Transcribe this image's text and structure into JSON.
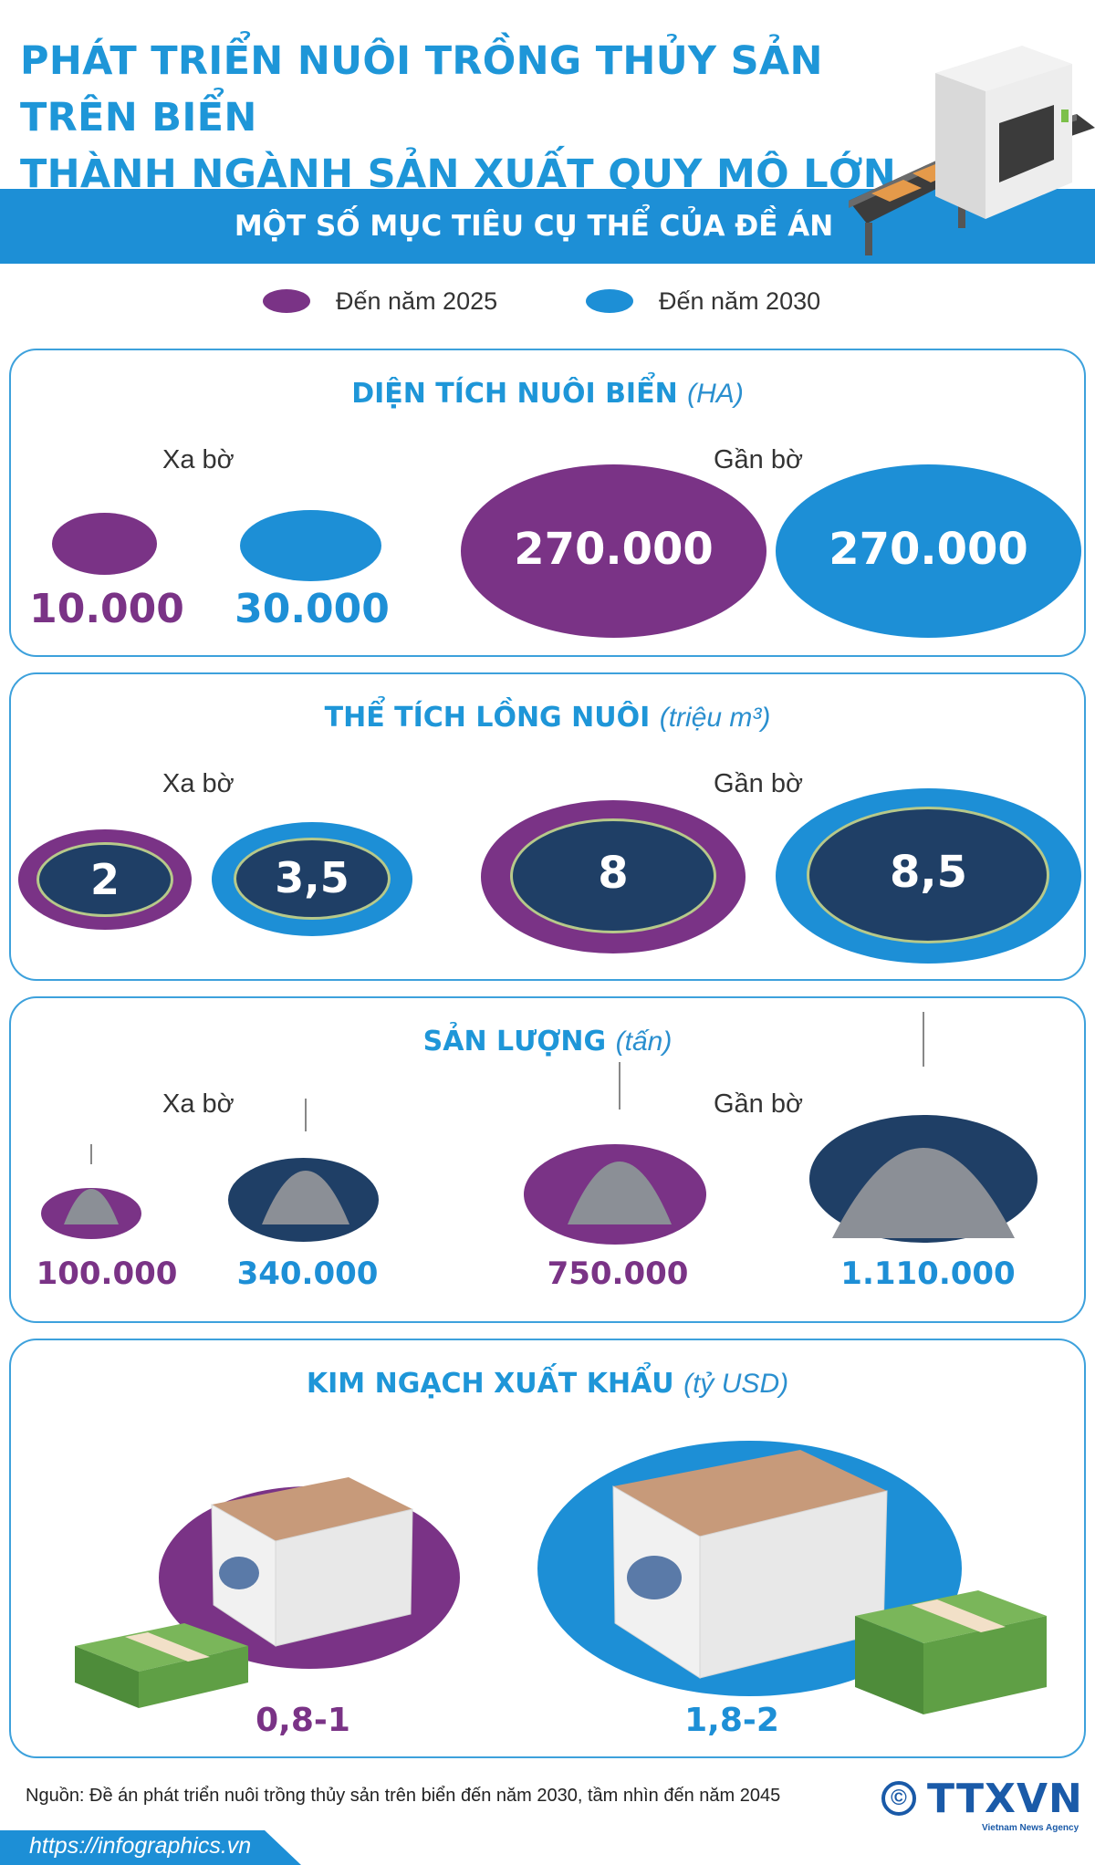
{
  "header": {
    "title_line1": "PHÁT TRIỂN NUÔI TRỒNG THỦY SẢN TRÊN BIỂN",
    "title_line2": "THÀNH NGÀNH SẢN XUẤT QUY MÔ LỚN",
    "band_label": "MỘT SỐ MỤC TIÊU CỤ THỂ CỦA ĐỀ ÁN"
  },
  "legend": {
    "item_2025": "Đến năm 2025",
    "item_2030": "Đến năm 2030"
  },
  "colors": {
    "y2025": "#7a3386",
    "y2030": "#1d8fd6",
    "accent": "#1e96d8",
    "dark_navy": "#1f3f66"
  },
  "zones": {
    "far": "Xa bờ",
    "near": "Gần bờ"
  },
  "area": {
    "title": "DIỆN TÍCH NUÔI BIỂN",
    "unit": "(HA)",
    "far_2025": "10.000",
    "far_2030": "30.000",
    "near_2025": "270.000",
    "near_2030": "270.000"
  },
  "volume": {
    "title": "THỂ TÍCH LỒNG NUÔI",
    "unit": "(triệu m³)",
    "far_2025": "2",
    "far_2030": "3,5",
    "near_2025": "8",
    "near_2030": "8,5"
  },
  "output": {
    "title": "SẢN LƯỢNG",
    "unit": "(tấn)",
    "far_2025": "100.000",
    "far_2030": "340.000",
    "near_2025": "750.000",
    "near_2030": "1.110.000"
  },
  "export": {
    "title": "KIM NGẠCH XUẤT KHẨU",
    "unit": "(tỷ USD)",
    "v_2025": "0,8-1",
    "v_2030": "1,8-2"
  },
  "footer": {
    "source": "Nguồn: Đề án phát triển nuôi trồng thủy sản trên biển đến năm 2030, tầm nhìn đến năm 2045",
    "url": "https://infographics.vn",
    "logo_text": "TTXVN",
    "logo_sub": "Vietnam News Agency",
    "logo_symbol": "©"
  }
}
